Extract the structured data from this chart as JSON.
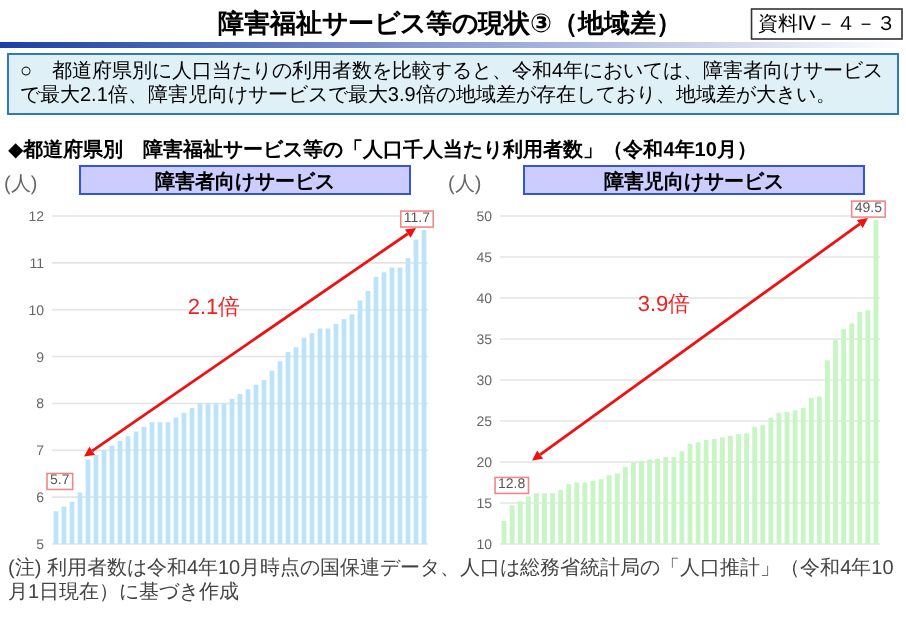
{
  "chart_data": [
    {
      "type": "bar",
      "title": "障害者向けサービス",
      "ylabel": "(人)",
      "color": "#bde3f8",
      "ylim": [
        5,
        12
      ],
      "yticks": [
        5,
        6,
        7,
        8,
        9,
        10,
        11,
        12
      ],
      "grid": "y",
      "tick_labels": "y",
      "categories": [
        null,
        null,
        null,
        null,
        null,
        null,
        null,
        null,
        null,
        null,
        null,
        null,
        null,
        null,
        null,
        null,
        null,
        null,
        null,
        null,
        null,
        null,
        null,
        null,
        null,
        null,
        null,
        null,
        null,
        null,
        null,
        null,
        null,
        null,
        null,
        null,
        null,
        null,
        null,
        null,
        null,
        null,
        null,
        null,
        null,
        null,
        null
      ],
      "values": [
        5.7,
        5.8,
        5.9,
        6.1,
        6.8,
        6.9,
        7.0,
        7.1,
        7.2,
        7.3,
        7.4,
        7.5,
        7.6,
        7.6,
        7.6,
        7.7,
        7.8,
        7.9,
        8.0,
        8.0,
        8.0,
        8.0,
        8.1,
        8.2,
        8.3,
        8.4,
        8.5,
        8.7,
        8.9,
        9.1,
        9.2,
        9.4,
        9.5,
        9.6,
        9.6,
        9.7,
        9.8,
        9.9,
        10.2,
        10.4,
        10.7,
        10.8,
        10.9,
        10.9,
        11.1,
        11.5,
        11.7
      ],
      "value_labels": [
        "5.7",
        null,
        null,
        null,
        null,
        null,
        null,
        null,
        null,
        null,
        null,
        null,
        null,
        null,
        null,
        null,
        null,
        null,
        null,
        null,
        null,
        null,
        null,
        null,
        null,
        null,
        null,
        null,
        null,
        null,
        null,
        null,
        null,
        null,
        null,
        null,
        null,
        null,
        null,
        null,
        null,
        null,
        null,
        null,
        null,
        null,
        "11.7"
      ],
      "annotations": [
        "障害福祉サービス等の現状③（地域差）",
        "資料Ⅳ－４－３",
        "○　都道府県別に人口当たりの利用者数を比較すると、令和4年においては、障害者向けサービスで最大2.1倍、障害児向けサービスで最大3.9倍の地域差が存在しており、地域差が大きい。",
        "◆都道府県別　障害福祉サービス等の「人口千人当たり利用者数」（令和4年10月）",
        "2.1倍",
        "(注) 利用者数は令和4年10月時点の国保連データ、人口は総務省統計局の「人口推計」（令和4年10月1日現在）に基づき作成"
      ]
    },
    {
      "type": "bar",
      "title": "障害児向けサービス",
      "ylabel": "(人)",
      "color": "#c8f5c4",
      "ylim": [
        10,
        50
      ],
      "yticks": [
        10,
        15,
        20,
        25,
        30,
        35,
        40,
        45,
        50
      ],
      "grid": "y",
      "tick_labels": "y",
      "categories": [
        null,
        null,
        null,
        null,
        null,
        null,
        null,
        null,
        null,
        null,
        null,
        null,
        null,
        null,
        null,
        null,
        null,
        null,
        null,
        null,
        null,
        null,
        null,
        null,
        null,
        null,
        null,
        null,
        null,
        null,
        null,
        null,
        null,
        null,
        null,
        null,
        null,
        null,
        null,
        null,
        null,
        null,
        null,
        null,
        null,
        null,
        null
      ],
      "values": [
        12.8,
        14.7,
        15.2,
        15.8,
        16.2,
        16.2,
        16.2,
        16.6,
        17.3,
        17.5,
        17.5,
        17.7,
        17.9,
        18.4,
        18.6,
        19.4,
        19.9,
        20.1,
        20.3,
        20.4,
        20.6,
        20.6,
        21.3,
        22.2,
        22.4,
        22.7,
        22.8,
        23.0,
        23.2,
        23.4,
        23.5,
        24.3,
        24.5,
        25.4,
        26.0,
        26.1,
        26.3,
        26.6,
        27.8,
        28.0,
        32.4,
        34.9,
        36.2,
        36.9,
        38.3,
        38.5,
        49.5
      ],
      "value_labels": [
        "12.8",
        null,
        null,
        null,
        null,
        null,
        null,
        null,
        null,
        null,
        null,
        null,
        null,
        null,
        null,
        null,
        null,
        null,
        null,
        null,
        null,
        null,
        null,
        null,
        null,
        null,
        null,
        null,
        null,
        null,
        null,
        null,
        null,
        null,
        null,
        null,
        null,
        null,
        null,
        null,
        null,
        null,
        null,
        null,
        null,
        null,
        "49.5"
      ],
      "annotations": [
        "3.9倍"
      ]
    }
  ]
}
